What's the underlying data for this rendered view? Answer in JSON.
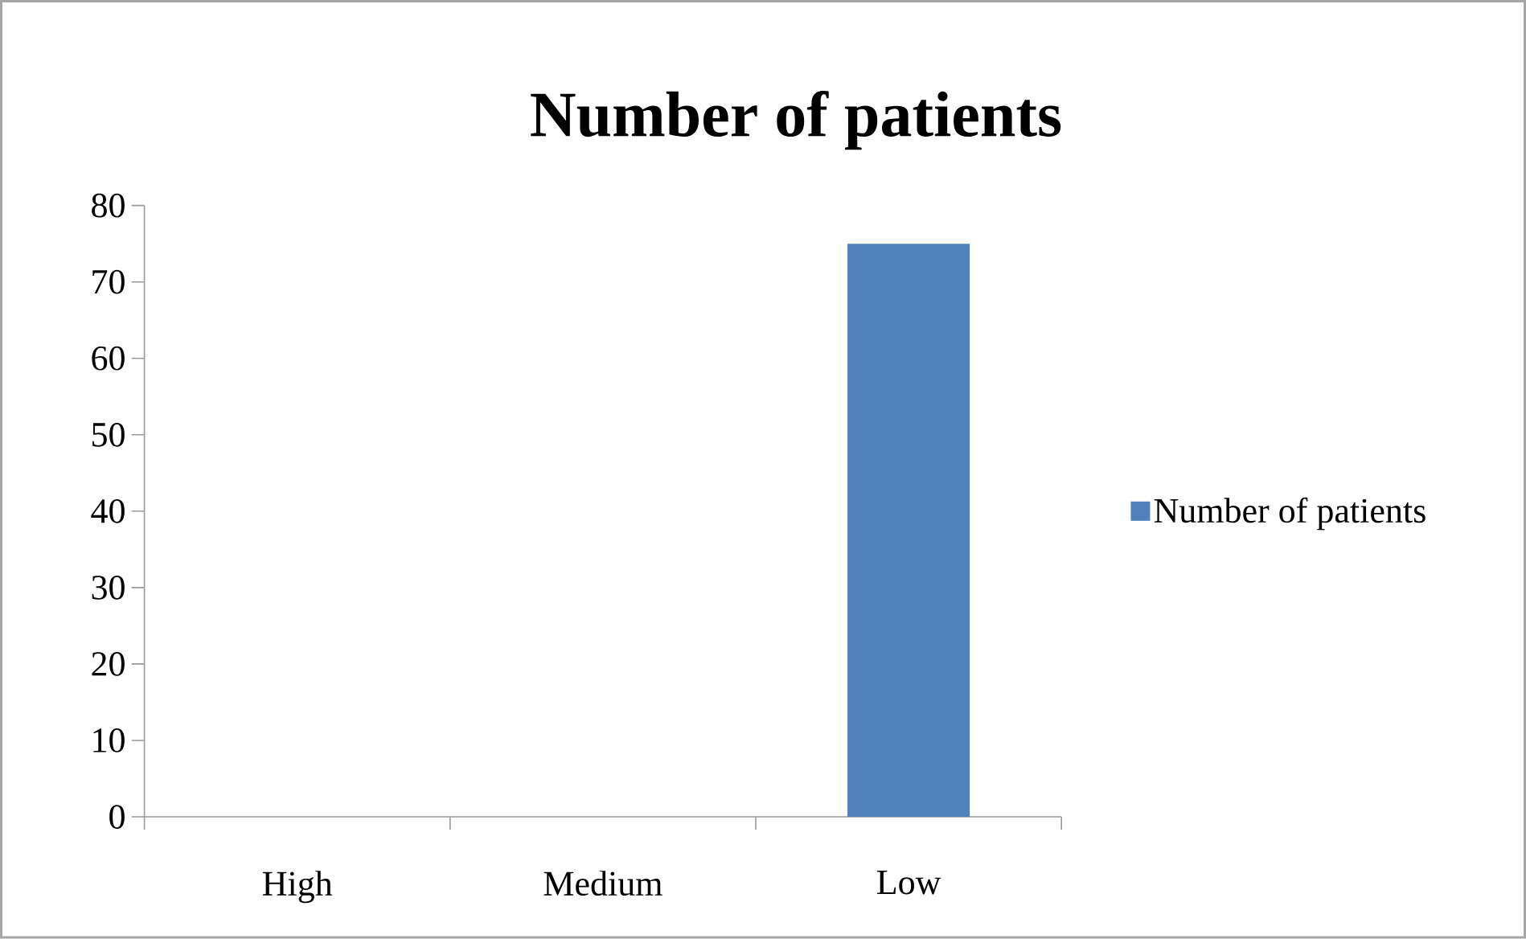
{
  "chart_data": {
    "type": "bar",
    "title": "Number of patients",
    "categories": [
      "High",
      "Medium",
      "Low"
    ],
    "series": [
      {
        "name": "Number of patients",
        "color": "#4f81bd",
        "values": [
          0,
          0,
          75
        ]
      }
    ],
    "ylim": [
      0,
      80
    ],
    "yticks": [
      0,
      10,
      20,
      30,
      40,
      50,
      60,
      70,
      80
    ],
    "legend": "right",
    "grid": false
  }
}
